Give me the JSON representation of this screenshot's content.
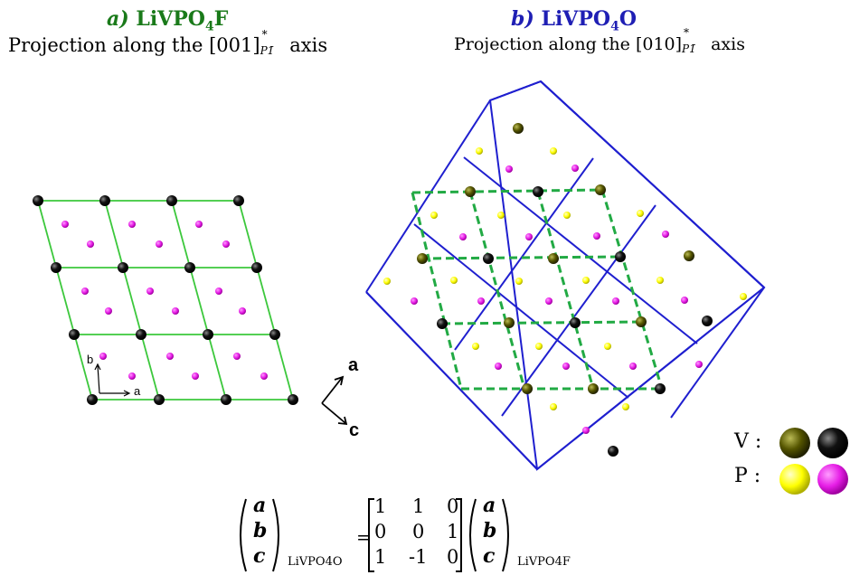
{
  "panel_a": {
    "letter": "a)",
    "formula_main": "LiVPO",
    "formula_sub": "4",
    "formula_tail": "F",
    "subtitle_prefix": "Projection along the [001]",
    "subtitle_sup": "*",
    "subtitle_sub": "P1̄",
    "subtitle_suffix": " axis",
    "color": "#1a7a1a",
    "axis_b": "b",
    "axis_a": "a"
  },
  "panel_b": {
    "letter": "b)",
    "formula_main": "LiVPO",
    "formula_sub": "4",
    "formula_tail": "O",
    "subtitle_prefix": "Projection along the [010]",
    "subtitle_sup": "*",
    "subtitle_sub": "P1̄",
    "subtitle_suffix": "  axis",
    "color": "#1f1fb4"
  },
  "orientation": {
    "up_label": "a",
    "down_label": "c"
  },
  "legend": {
    "v_label": "V :",
    "p_label": "P :"
  },
  "matrix": {
    "lhs": [
      "a",
      "b",
      "c"
    ],
    "lhs_sub": "LiVPO4O",
    "equals": "=",
    "rows": [
      [
        "1",
        "1",
        "0"
      ],
      [
        "0",
        "0",
        "1"
      ],
      [
        "1",
        "-1",
        "0"
      ]
    ],
    "rhs": [
      "a",
      "b",
      "c"
    ],
    "rhs_sub": "LiVPO4F"
  },
  "colors": {
    "green_cell": "#3cc83c",
    "blue_cell": "#1f1fcf",
    "dashed_green": "#22aa44",
    "magenta": "#e61ee6",
    "yellow": "#ffff00",
    "v_dark": "#222222",
    "v_olive": "#555500"
  }
}
